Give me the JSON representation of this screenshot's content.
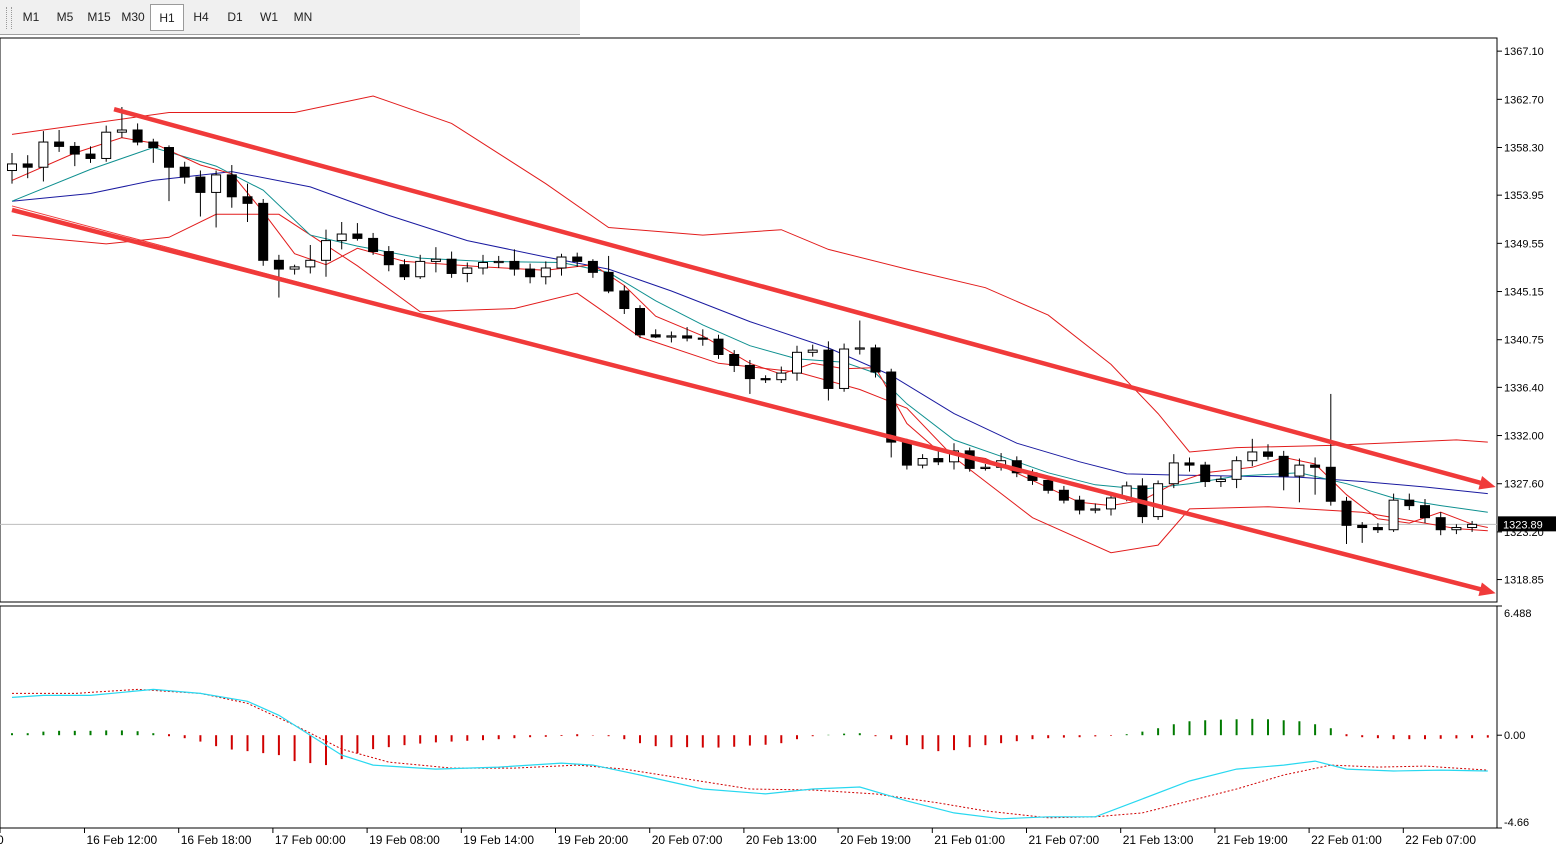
{
  "toolbar": {
    "timeframes": [
      "M1",
      "M5",
      "M15",
      "M30",
      "H1",
      "H4",
      "D1",
      "W1",
      "MN"
    ],
    "active": "H1"
  },
  "chart_data": {
    "type": "candlestick",
    "timeframe": "H1",
    "current_price": "1323.89",
    "price_ticks": [
      "1367.10",
      "1362.70",
      "1358.30",
      "1353.95",
      "1349.55",
      "1345.15",
      "1340.75",
      "1336.40",
      "1332.00",
      "1327.60",
      "1323.20",
      "1318.85"
    ],
    "ylim": [
      1316.8,
      1368.3
    ],
    "time_labels": [
      "0",
      "16 Feb 12:00",
      "16 Feb 18:00",
      "17 Feb 00:00",
      "19 Feb 08:00",
      "19 Feb 14:00",
      "19 Feb 20:00",
      "20 Feb 07:00",
      "20 Feb 13:00",
      "20 Feb 19:00",
      "21 Feb 01:00",
      "21 Feb 07:00",
      "21 Feb 13:00",
      "21 Feb 19:00",
      "22 Feb 01:00",
      "22 Feb 07:00"
    ],
    "time_label_index": [
      0,
      5,
      11,
      17,
      23,
      29,
      35,
      41,
      47,
      53,
      59,
      65,
      71,
      77,
      83,
      89
    ],
    "candles": [
      [
        1356.2,
        1357.8,
        1355.0,
        1356.8
      ],
      [
        1356.8,
        1357.6,
        1355.5,
        1356.5
      ],
      [
        1356.5,
        1359.8,
        1355.2,
        1358.8
      ],
      [
        1358.8,
        1359.9,
        1357.9,
        1358.4
      ],
      [
        1358.4,
        1358.8,
        1356.6,
        1357.7
      ],
      [
        1357.7,
        1358.4,
        1356.9,
        1357.3
      ],
      [
        1357.3,
        1360.3,
        1357.0,
        1359.7
      ],
      [
        1359.7,
        1362.0,
        1359.2,
        1359.9
      ],
      [
        1359.9,
        1360.5,
        1358.5,
        1358.8
      ],
      [
        1358.8,
        1359.1,
        1356.9,
        1358.3
      ],
      [
        1358.3,
        1358.5,
        1353.4,
        1356.5
      ],
      [
        1356.5,
        1357.0,
        1355.0,
        1355.6
      ],
      [
        1355.6,
        1356.2,
        1352.0,
        1354.2
      ],
      [
        1354.2,
        1356.2,
        1351.0,
        1355.8
      ],
      [
        1355.8,
        1356.7,
        1352.8,
        1353.8
      ],
      [
        1353.8,
        1355.0,
        1351.5,
        1353.2
      ],
      [
        1353.2,
        1353.6,
        1347.5,
        1348.0
      ],
      [
        1348.0,
        1348.5,
        1344.6,
        1347.2
      ],
      [
        1347.2,
        1347.6,
        1346.7,
        1347.4
      ],
      [
        1347.4,
        1349.4,
        1346.8,
        1348.0
      ],
      [
        1348.0,
        1350.8,
        1346.5,
        1349.8
      ],
      [
        1349.8,
        1351.5,
        1349.0,
        1350.4
      ],
      [
        1350.4,
        1351.4,
        1349.8,
        1350.0
      ],
      [
        1350.0,
        1350.5,
        1348.5,
        1348.8
      ],
      [
        1348.8,
        1349.3,
        1347.0,
        1347.6
      ],
      [
        1347.6,
        1348.1,
        1346.2,
        1346.5
      ],
      [
        1346.5,
        1348.5,
        1346.3,
        1347.9
      ],
      [
        1347.9,
        1349.2,
        1346.9,
        1348.1
      ],
      [
        1348.1,
        1348.8,
        1346.4,
        1346.8
      ],
      [
        1346.8,
        1347.8,
        1346.0,
        1347.3
      ],
      [
        1347.3,
        1348.5,
        1346.7,
        1347.8
      ],
      [
        1347.8,
        1348.4,
        1347.3,
        1347.9
      ],
      [
        1347.9,
        1349.0,
        1346.6,
        1347.2
      ],
      [
        1347.2,
        1347.7,
        1345.9,
        1346.5
      ],
      [
        1346.5,
        1347.9,
        1345.8,
        1347.3
      ],
      [
        1347.3,
        1348.6,
        1346.6,
        1348.3
      ],
      [
        1348.3,
        1348.7,
        1347.4,
        1347.9
      ],
      [
        1347.9,
        1348.1,
        1346.4,
        1346.9
      ],
      [
        1346.9,
        1348.4,
        1345.0,
        1345.2
      ],
      [
        1345.2,
        1345.7,
        1343.1,
        1343.6
      ],
      [
        1343.6,
        1343.9,
        1340.9,
        1341.2
      ],
      [
        1341.2,
        1341.7,
        1340.9,
        1341.0
      ],
      [
        1341.0,
        1341.5,
        1340.5,
        1341.1
      ],
      [
        1341.1,
        1341.9,
        1340.6,
        1340.9
      ],
      [
        1340.9,
        1341.7,
        1340.2,
        1340.8
      ],
      [
        1340.8,
        1341.2,
        1339.0,
        1339.4
      ],
      [
        1339.4,
        1339.8,
        1337.8,
        1338.4
      ],
      [
        1338.4,
        1338.9,
        1335.8,
        1337.2
      ],
      [
        1337.2,
        1337.5,
        1336.8,
        1337.1
      ],
      [
        1337.1,
        1338.3,
        1336.8,
        1337.7
      ],
      [
        1337.7,
        1340.2,
        1337.0,
        1339.6
      ],
      [
        1339.6,
        1340.3,
        1339.2,
        1339.8
      ],
      [
        1339.8,
        1340.6,
        1335.2,
        1336.3
      ],
      [
        1336.3,
        1340.4,
        1336.0,
        1339.9
      ],
      [
        1339.9,
        1342.5,
        1339.4,
        1340.0
      ],
      [
        1340.0,
        1340.3,
        1337.3,
        1337.8
      ],
      [
        1337.8,
        1338.1,
        1330.0,
        1331.4
      ],
      [
        1331.4,
        1331.7,
        1328.9,
        1329.3
      ],
      [
        1329.3,
        1330.3,
        1329.0,
        1329.9
      ],
      [
        1329.9,
        1330.6,
        1329.3,
        1329.6
      ],
      [
        1329.6,
        1331.3,
        1328.9,
        1330.6
      ],
      [
        1330.6,
        1330.9,
        1328.7,
        1329.0
      ],
      [
        1329.0,
        1329.4,
        1328.8,
        1329.1
      ],
      [
        1329.1,
        1330.4,
        1328.8,
        1329.7
      ],
      [
        1329.7,
        1330.1,
        1328.2,
        1328.6
      ],
      [
        1328.6,
        1328.9,
        1327.5,
        1327.9
      ],
      [
        1327.9,
        1328.3,
        1326.7,
        1327.0
      ],
      [
        1327.0,
        1327.4,
        1325.8,
        1326.1
      ],
      [
        1326.1,
        1326.5,
        1324.8,
        1325.2
      ],
      [
        1325.2,
        1325.8,
        1324.9,
        1325.3
      ],
      [
        1325.3,
        1326.7,
        1324.7,
        1326.3
      ],
      [
        1326.3,
        1327.8,
        1326.0,
        1327.4
      ],
      [
        1327.4,
        1328.1,
        1324.0,
        1324.6
      ],
      [
        1324.6,
        1327.9,
        1324.3,
        1327.6
      ],
      [
        1327.6,
        1330.3,
        1327.2,
        1329.5
      ],
      [
        1329.5,
        1330.0,
        1328.7,
        1329.3
      ],
      [
        1329.3,
        1329.6,
        1327.3,
        1327.8
      ],
      [
        1327.8,
        1328.3,
        1327.3,
        1328.0
      ],
      [
        1328.0,
        1330.1,
        1327.2,
        1329.7
      ],
      [
        1329.7,
        1331.7,
        1329.2,
        1330.5
      ],
      [
        1330.5,
        1331.2,
        1329.8,
        1330.1
      ],
      [
        1330.1,
        1330.6,
        1327.0,
        1328.3
      ],
      [
        1328.3,
        1329.9,
        1325.9,
        1329.3
      ],
      [
        1329.3,
        1330.0,
        1326.6,
        1329.1
      ],
      [
        1329.1,
        1335.8,
        1325.6,
        1326.0
      ],
      [
        1326.0,
        1326.4,
        1322.1,
        1323.8
      ],
      [
        1323.8,
        1324.1,
        1322.2,
        1323.6
      ],
      [
        1323.6,
        1324.0,
        1323.1,
        1323.4
      ],
      [
        1323.4,
        1326.7,
        1323.2,
        1326.1
      ],
      [
        1326.1,
        1326.7,
        1325.2,
        1325.6
      ],
      [
        1325.6,
        1326.2,
        1324.0,
        1324.5
      ],
      [
        1324.5,
        1325.0,
        1322.9,
        1323.4
      ],
      [
        1323.4,
        1323.9,
        1323.0,
        1323.6
      ],
      [
        1323.6,
        1324.2,
        1323.2,
        1323.89
      ]
    ],
    "bollinger_upper": [
      [
        0,
        1359.5
      ],
      [
        10,
        1361.5
      ],
      [
        18,
        1361.5
      ],
      [
        23,
        1363.0
      ],
      [
        28,
        1360.5
      ],
      [
        34,
        1355.0
      ],
      [
        38,
        1351.0
      ],
      [
        44,
        1350.3
      ],
      [
        49,
        1350.8
      ],
      [
        52,
        1349.0
      ],
      [
        57,
        1347.2
      ],
      [
        62,
        1345.5
      ],
      [
        66,
        1343.0
      ],
      [
        70,
        1338.5
      ],
      [
        73,
        1334.0
      ],
      [
        75,
        1330.5
      ],
      [
        78,
        1330.9
      ],
      [
        84,
        1331.1
      ],
      [
        92,
        1331.6
      ],
      [
        94,
        1331.4
      ]
    ],
    "bollinger_lower": [
      [
        0,
        1350.3
      ],
      [
        6,
        1349.5
      ],
      [
        10,
        1350.1
      ],
      [
        13,
        1352.2
      ],
      [
        17,
        1352.2
      ],
      [
        22,
        1347.5
      ],
      [
        26,
        1343.3
      ],
      [
        32,
        1343.6
      ],
      [
        36,
        1345.0
      ],
      [
        40,
        1341.0
      ],
      [
        45,
        1338.6
      ],
      [
        50,
        1337.8
      ],
      [
        54,
        1336.2
      ],
      [
        57,
        1334.5
      ],
      [
        60,
        1330.0
      ],
      [
        65,
        1324.5
      ],
      [
        70,
        1321.3
      ],
      [
        73,
        1322.0
      ],
      [
        75,
        1325.3
      ],
      [
        80,
        1325.5
      ],
      [
        86,
        1325.0
      ],
      [
        92,
        1323.5
      ],
      [
        94,
        1323.3
      ]
    ],
    "ma_fast": [
      [
        0,
        1355.3
      ],
      [
        4,
        1357.8
      ],
      [
        7,
        1359.2
      ],
      [
        9,
        1358.7
      ],
      [
        12,
        1356.7
      ],
      [
        14,
        1355.9
      ],
      [
        16,
        1352.4
      ],
      [
        18,
        1348.6
      ],
      [
        20,
        1347.6
      ],
      [
        22,
        1349.1
      ],
      [
        25,
        1347.9
      ],
      [
        30,
        1347.4
      ],
      [
        34,
        1347.1
      ],
      [
        37,
        1347.6
      ],
      [
        39,
        1345.7
      ],
      [
        41,
        1342.9
      ],
      [
        44,
        1341.1
      ],
      [
        47,
        1338.6
      ],
      [
        49,
        1337.6
      ],
      [
        51,
        1338.6
      ],
      [
        53,
        1338.1
      ],
      [
        55,
        1338.2
      ],
      [
        57,
        1333.1
      ],
      [
        59,
        1330.6
      ],
      [
        62,
        1329.9
      ],
      [
        65,
        1327.9
      ],
      [
        68,
        1325.9
      ],
      [
        70,
        1325.6
      ],
      [
        72,
        1326.1
      ],
      [
        74,
        1327.6
      ],
      [
        76,
        1328.6
      ],
      [
        79,
        1329.1
      ],
      [
        81,
        1330.0
      ],
      [
        83,
        1329.4
      ],
      [
        85,
        1326.6
      ],
      [
        87,
        1324.4
      ],
      [
        89,
        1324.0
      ],
      [
        91,
        1325.0
      ],
      [
        93,
        1323.9
      ],
      [
        94,
        1323.6
      ]
    ],
    "ma_mid": [
      [
        0,
        1353.4
      ],
      [
        5,
        1356.3
      ],
      [
        9,
        1358.3
      ],
      [
        13,
        1356.6
      ],
      [
        16,
        1354.4
      ],
      [
        19,
        1350.3
      ],
      [
        22,
        1349.3
      ],
      [
        26,
        1348.2
      ],
      [
        30,
        1347.9
      ],
      [
        35,
        1347.8
      ],
      [
        38,
        1346.9
      ],
      [
        41,
        1344.3
      ],
      [
        44,
        1342.1
      ],
      [
        47,
        1340.2
      ],
      [
        50,
        1339.0
      ],
      [
        53,
        1338.7
      ],
      [
        55,
        1337.7
      ],
      [
        57,
        1334.9
      ],
      [
        60,
        1331.6
      ],
      [
        63,
        1330.1
      ],
      [
        66,
        1328.6
      ],
      [
        69,
        1327.5
      ],
      [
        72,
        1327.1
      ],
      [
        75,
        1327.6
      ],
      [
        78,
        1328.3
      ],
      [
        82,
        1328.6
      ],
      [
        85,
        1327.6
      ],
      [
        88,
        1326.3
      ],
      [
        91,
        1325.6
      ],
      [
        94,
        1325.0
      ]
    ],
    "ma_slow": [
      [
        0,
        1353.4
      ],
      [
        5,
        1354.1
      ],
      [
        9,
        1355.3
      ],
      [
        14,
        1356.1
      ],
      [
        19,
        1354.7
      ],
      [
        24,
        1352.1
      ],
      [
        29,
        1349.8
      ],
      [
        34,
        1348.3
      ],
      [
        38,
        1347.2
      ],
      [
        42,
        1345.2
      ],
      [
        47,
        1342.4
      ],
      [
        52,
        1340.0
      ],
      [
        56,
        1337.5
      ],
      [
        60,
        1334.0
      ],
      [
        64,
        1331.3
      ],
      [
        68,
        1329.6
      ],
      [
        71,
        1328.5
      ],
      [
        74,
        1328.4
      ],
      [
        78,
        1328.3
      ],
      [
        82,
        1328.2
      ],
      [
        86,
        1327.8
      ],
      [
        90,
        1327.3
      ],
      [
        94,
        1326.7
      ]
    ],
    "channel_upper": [
      [
        6.5,
        1361.8
      ],
      [
        94.5,
        1327.3
      ]
    ],
    "channel_lower": [
      [
        0,
        1352.6
      ],
      [
        94.5,
        1317.6
      ]
    ],
    "osc_ticks": [
      "6.488",
      "0.00",
      "-4.66"
    ],
    "osc_ylim": [
      -4.66,
      6.488
    ],
    "osc_hist": [
      0.1,
      0.1,
      0.18,
      0.22,
      0.22,
      0.22,
      0.24,
      0.24,
      0.2,
      0.1,
      0,
      -0.15,
      -0.32,
      -0.55,
      -0.72,
      -0.8,
      -0.9,
      -1.0,
      -1.3,
      -1.4,
      -1.5,
      -1.2,
      -0.9,
      -0.7,
      -0.6,
      -0.5,
      -0.42,
      -0.36,
      -0.32,
      -0.28,
      -0.25,
      -0.2,
      -0.15,
      -0.1,
      -0.08,
      -0.04,
      0,
      -0.02,
      -0.05,
      -0.2,
      -0.4,
      -0.55,
      -0.6,
      -0.6,
      -0.62,
      -0.62,
      -0.58,
      -0.52,
      -0.48,
      -0.4,
      -0.2,
      -0.05,
      0.02,
      0.08,
      0.1,
      -0.05,
      -0.2,
      -0.5,
      -0.7,
      -0.8,
      -0.75,
      -0.6,
      -0.5,
      -0.4,
      -0.3,
      -0.2,
      -0.15,
      -0.12,
      -0.1,
      -0.06,
      -0.03,
      0.05,
      0.18,
      0.35,
      0.55,
      0.7,
      0.75,
      0.78,
      0.8,
      0.82,
      0.8,
      0.75,
      0.7,
      0.55,
      0.35,
      0,
      -0.1,
      -0.15,
      -0.2,
      -0.2,
      -0.2,
      -0.18,
      -0.16,
      -0.15,
      -0.12
    ],
    "osc_signal_fast": [
      [
        0,
        1.9
      ],
      [
        2,
        2.0
      ],
      [
        5,
        2.0
      ],
      [
        9,
        2.3
      ],
      [
        12,
        2.1
      ],
      [
        15,
        1.7
      ],
      [
        17,
        1.0
      ],
      [
        19,
        0
      ],
      [
        21,
        -1.0
      ],
      [
        23,
        -1.5
      ],
      [
        27,
        -1.7
      ],
      [
        31,
        -1.6
      ],
      [
        35,
        -1.4
      ],
      [
        37,
        -1.5
      ],
      [
        40,
        -2.0
      ],
      [
        44,
        -2.7
      ],
      [
        48,
        -2.95
      ],
      [
        51,
        -2.7
      ],
      [
        54,
        -2.6
      ],
      [
        57,
        -3.3
      ],
      [
        60,
        -3.9
      ],
      [
        63,
        -4.2
      ],
      [
        66,
        -4.1
      ],
      [
        69,
        -4.1
      ],
      [
        72,
        -3.2
      ],
      [
        75,
        -2.3
      ],
      [
        78,
        -1.7
      ],
      [
        81,
        -1.5
      ],
      [
        83,
        -1.3
      ],
      [
        85,
        -1.7
      ],
      [
        88,
        -1.8
      ],
      [
        91,
        -1.75
      ],
      [
        94,
        -1.8
      ]
    ],
    "osc_signal_slow": [
      [
        0,
        2.1
      ],
      [
        4,
        2.1
      ],
      [
        8,
        2.3
      ],
      [
        12,
        2.1
      ],
      [
        15,
        1.6
      ],
      [
        18,
        0.5
      ],
      [
        21,
        -0.7
      ],
      [
        24,
        -1.35
      ],
      [
        28,
        -1.65
      ],
      [
        32,
        -1.65
      ],
      [
        36,
        -1.5
      ],
      [
        39,
        -1.7
      ],
      [
        43,
        -2.2
      ],
      [
        47,
        -2.7
      ],
      [
        51,
        -2.75
      ],
      [
        55,
        -2.95
      ],
      [
        59,
        -3.4
      ],
      [
        62,
        -3.8
      ],
      [
        66,
        -4.15
      ],
      [
        69,
        -4.1
      ],
      [
        72,
        -3.9
      ],
      [
        75,
        -3.3
      ],
      [
        78,
        -2.7
      ],
      [
        81,
        -2.0
      ],
      [
        84,
        -1.5
      ],
      [
        87,
        -1.6
      ],
      [
        90,
        -1.55
      ],
      [
        94,
        -1.75
      ]
    ]
  }
}
